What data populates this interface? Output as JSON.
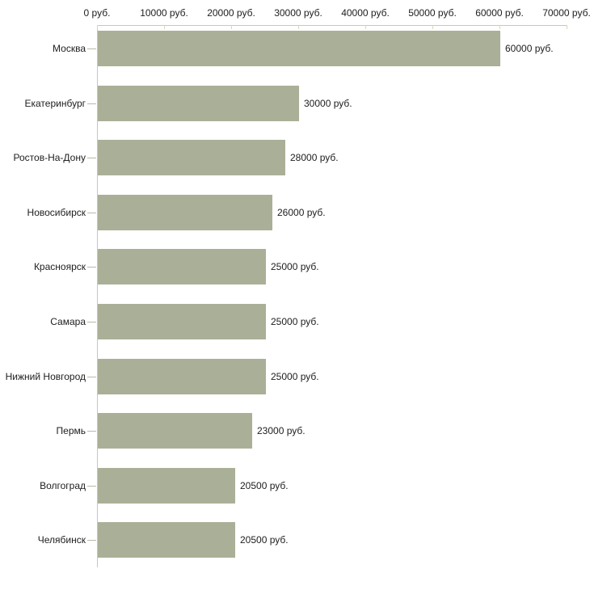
{
  "chart_data": {
    "type": "bar",
    "orientation": "horizontal",
    "categories": [
      "Москва",
      "Екатеринбург",
      "Ростов-На-Дону",
      "Новосибирск",
      "Красноярск",
      "Самара",
      "Нижний Новгород",
      "Пермь",
      "Волгоград",
      "Челябинск"
    ],
    "values": [
      60000,
      30000,
      28000,
      26000,
      25000,
      25000,
      25000,
      23000,
      20500,
      20500
    ],
    "value_labels": [
      "60000 руб.",
      "30000 руб.",
      "28000 руб.",
      "26000 руб.",
      "25000 руб.",
      "25000 руб.",
      "25000 руб.",
      "23000 руб.",
      "20500 руб.",
      "20500 руб."
    ],
    "x_axis": {
      "position": "top",
      "min": 0,
      "max": 70000,
      "tick_values": [
        0,
        10000,
        20000,
        30000,
        40000,
        50000,
        60000,
        70000
      ],
      "tick_labels": [
        "0 руб.",
        "10000 руб.",
        "20000 руб.",
        "30000 руб.",
        "40000 руб.",
        "50000 руб.",
        "60000 руб.",
        "70000 руб."
      ]
    },
    "grid": false,
    "legend": false,
    "colors": {
      "bar_fill": "#aab097",
      "axis_line": "#c6c6c6",
      "x_tick": "#d6d8be",
      "category_tick": "#b8bba9",
      "text": "#202020",
      "background": "#ffffff"
    }
  }
}
